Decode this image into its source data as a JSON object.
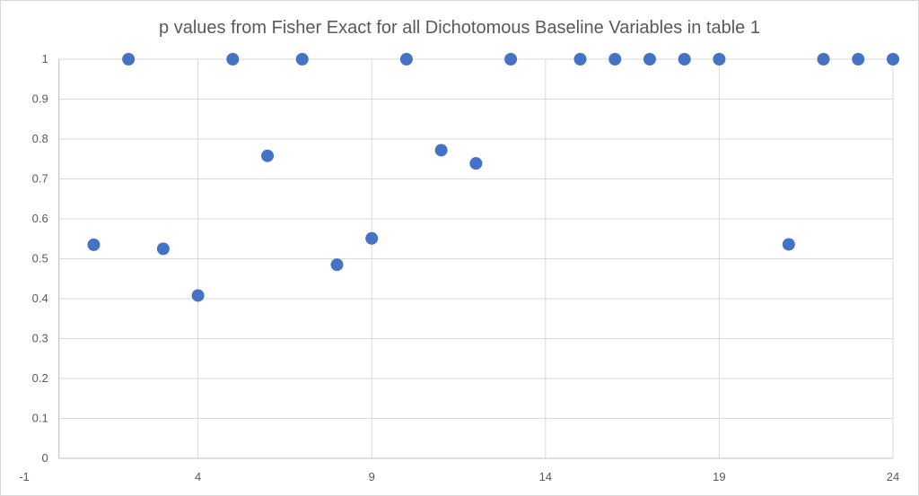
{
  "chart_data": {
    "type": "scatter",
    "title": "p values from Fisher Exact for all Dichotomous Baseline Variables in table 1",
    "xlabel": "",
    "ylabel": "",
    "xlim": [
      -1,
      24
    ],
    "ylim": [
      0,
      1
    ],
    "x_ticks": [
      -1,
      4,
      9,
      14,
      19,
      24
    ],
    "y_ticks": [
      0,
      0.1,
      0.2,
      0.3,
      0.4,
      0.5,
      0.6,
      0.7,
      0.8,
      0.9,
      1
    ],
    "grid": true,
    "legend": "none",
    "marker_color": "#4472C4",
    "points": [
      {
        "x": 1,
        "y": 0.535
      },
      {
        "x": 2,
        "y": 1
      },
      {
        "x": 3,
        "y": 0.525
      },
      {
        "x": 4,
        "y": 0.408
      },
      {
        "x": 5,
        "y": 1
      },
      {
        "x": 6,
        "y": 0.758
      },
      {
        "x": 7,
        "y": 1
      },
      {
        "x": 8,
        "y": 0.485
      },
      {
        "x": 9,
        "y": 0.551
      },
      {
        "x": 10,
        "y": 1
      },
      {
        "x": 11,
        "y": 0.772
      },
      {
        "x": 12,
        "y": 0.739
      },
      {
        "x": 13,
        "y": 1
      },
      {
        "x": 15,
        "y": 1
      },
      {
        "x": 16,
        "y": 1
      },
      {
        "x": 17,
        "y": 1
      },
      {
        "x": 18,
        "y": 1
      },
      {
        "x": 19,
        "y": 1
      },
      {
        "x": 21,
        "y": 0.536
      },
      {
        "x": 22,
        "y": 1
      },
      {
        "x": 23,
        "y": 1
      },
      {
        "x": 24,
        "y": 1
      }
    ]
  }
}
